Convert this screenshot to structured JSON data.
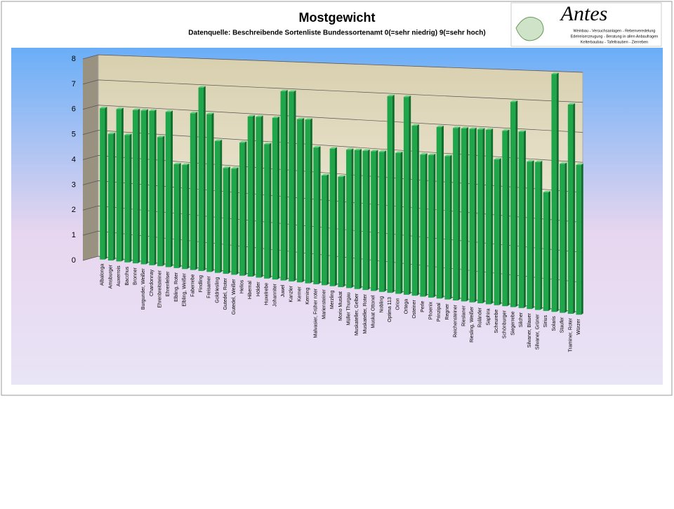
{
  "chart_data": {
    "type": "bar",
    "title": "Mostgewicht",
    "subtitle": "Datenquelle: Beschreibende Sortenliste Bundessortenamt 0(=sehr niedrig) 9(=sehr hoch)",
    "logo": {
      "name": "Antes",
      "lines": [
        "Weinbau - Versuchsanlagen - Rebenveredelung",
        "Edelreiserzeugung - Beratung in allen Anbaufragen",
        "Kelterbaubau - Tafeltrauben - Zierreben"
      ]
    },
    "categories": [
      "Albalonga",
      "Amsburger",
      "Auxerrois",
      "Bacchus",
      "Bronner",
      "Burgunder, Weißer",
      "Chardonnay",
      "Ehrenbreitsteiner",
      "Ehrenfelser",
      "Elbling, Roter",
      "Elbling, Weißer",
      "Faberrebe",
      "Findling",
      "Freisamer",
      "Goldriesling",
      "Gutedel, Roter",
      "Gutedel, Weißer",
      "Helios",
      "Hibernal",
      "Hölder",
      "Huxelrebe",
      "Johanniter",
      "Juwel",
      "Kanzler",
      "Kerner",
      "Kerning",
      "Malvasier, Früher roter",
      "Mariensteiner",
      "Merzling",
      "Morio Muskat",
      "Müller Thurgau",
      "Muskateller, Gelber",
      "Muskateller, Roter",
      "Muskat Ottonel",
      "Nobling",
      "Optima 113",
      "Orion",
      "Ortega",
      "Osteiner",
      "Perle",
      "Phoenix",
      "Prinzipal",
      "Regner",
      "Reichensteiner",
      "Rieslaner",
      "Riesling, Weißer",
      "Ruländer",
      "Saphira",
      "Scheurebe",
      "Schönburger",
      "Siegerrebe",
      "Silcher",
      "Silvaner, Blauer",
      "Silvaner, Grüner",
      "Sirius",
      "Solaris",
      "Staufer",
      "Traminer, Roter",
      "Würzer"
    ],
    "values": [
      6,
      5,
      6,
      5,
      6,
      6,
      6,
      5,
      6,
      4,
      4,
      6,
      7,
      6,
      5,
      4,
      4,
      5,
      6,
      6,
      5,
      6,
      7,
      7,
      6,
      6,
      5,
      4,
      5,
      4,
      5,
      5,
      5,
      5,
      5,
      7,
      5,
      7,
      6,
      5,
      5,
      6,
      5,
      6,
      6,
      6,
      6,
      6,
      5,
      6,
      7,
      6,
      5,
      5,
      4,
      8,
      5,
      7,
      5
    ],
    "color": "#1fa64a",
    "ylim": [
      0,
      8
    ],
    "yticks": [
      0,
      1,
      2,
      3,
      4,
      5,
      6,
      7,
      8
    ],
    "grid": true
  }
}
